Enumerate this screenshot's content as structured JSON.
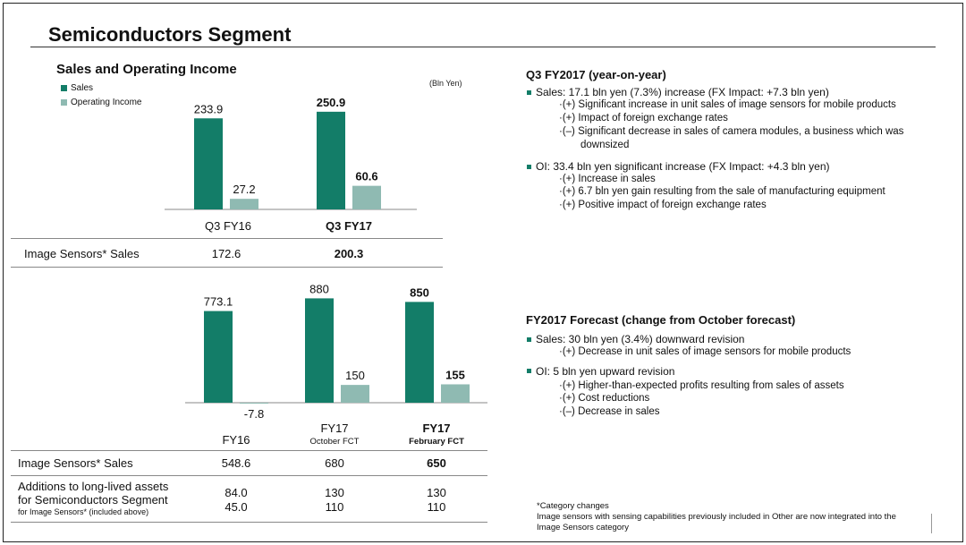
{
  "title": "Semiconductors Segment",
  "colors": {
    "sales": "#137d68",
    "oi": "#8fbab2"
  },
  "left": {
    "subtitle": "Sales and Operating Income",
    "unit": "(Bln Yen)",
    "legend": [
      "Sales",
      "Operating Income"
    ],
    "row_label_q": "Image Sensors* Sales",
    "row_label_fy": "Image Sensors* Sales",
    "additions_label_1": "Additions to long-lived assets",
    "additions_label_2": "for Semiconductors Segment",
    "additions_label_3": "for Image Sensors* (included above)"
  },
  "chart_data": [
    {
      "type": "bar",
      "categories": [
        "Q3 FY16",
        "Q3 FY17"
      ],
      "series": [
        {
          "name": "Sales",
          "values": [
            233.9,
            250.9
          ]
        },
        {
          "name": "Operating Income",
          "values": [
            27.2,
            60.6
          ]
        }
      ],
      "value_labels": [
        [
          "233.9",
          "27.2"
        ],
        [
          "250.9",
          "60.6"
        ]
      ],
      "table": {
        "label": "Image Sensors* Sales",
        "values": [
          "172.6",
          "200.3"
        ]
      }
    },
    {
      "type": "bar",
      "categories": [
        "FY16",
        "FY17",
        "FY17"
      ],
      "category_sub": [
        "",
        "October FCT",
        "February FCT"
      ],
      "series": [
        {
          "name": "Sales",
          "values": [
            773.1,
            880,
            850
          ]
        },
        {
          "name": "Operating Income",
          "values": [
            -7.8,
            150,
            155
          ]
        }
      ],
      "value_labels": [
        [
          "773.1",
          "-7.8"
        ],
        [
          "880",
          "150"
        ],
        [
          "850",
          "155"
        ]
      ],
      "table": {
        "image_sensors_sales": [
          "548.6",
          "680",
          "650"
        ],
        "additions_semis": [
          "84.0",
          "130",
          "130"
        ],
        "additions_image_sensors": [
          "45.0",
          "110",
          "110"
        ]
      }
    }
  ],
  "right": {
    "q3_head": "Q3 FY2017 (year-on-year)",
    "q3_sales": "Sales: 17.1 bln yen (7.3%) increase (FX Impact: +7.3 bln yen)",
    "q3_sales_items": [
      "·(+) Significant increase in unit sales of image sensors for mobile products",
      "·(+) Impact of foreign exchange rates",
      "·(–) Significant decrease in sales of camera modules, a business which was",
      "downsized"
    ],
    "q3_oi": "OI: 33.4 bln yen significant increase  (FX Impact: +4.3 bln yen)",
    "q3_oi_items": [
      "·(+) Increase in sales",
      "·(+) 6.7 bln yen gain resulting from the sale of manufacturing equipment",
      "·(+) Positive impact of foreign exchange rates"
    ],
    "fy_head": "FY2017 Forecast (change from October forecast)",
    "fy_sales": "Sales: 30 bln yen (3.4%) downward revision",
    "fy_sales_items": [
      "·(+) Decrease in unit sales of image sensors for mobile products"
    ],
    "fy_oi": "OI: 5 bln yen upward revision",
    "fy_oi_items": [
      "·(+) Higher-than-expected profits resulting from sales of assets",
      "·(+) Cost reductions",
      "·(–) Decrease in sales"
    ],
    "foot_1": "*Category changes",
    "foot_2": "Image sensors with sensing capabilities previously included in Other are now integrated into the",
    "foot_3": "Image Sensors category"
  }
}
